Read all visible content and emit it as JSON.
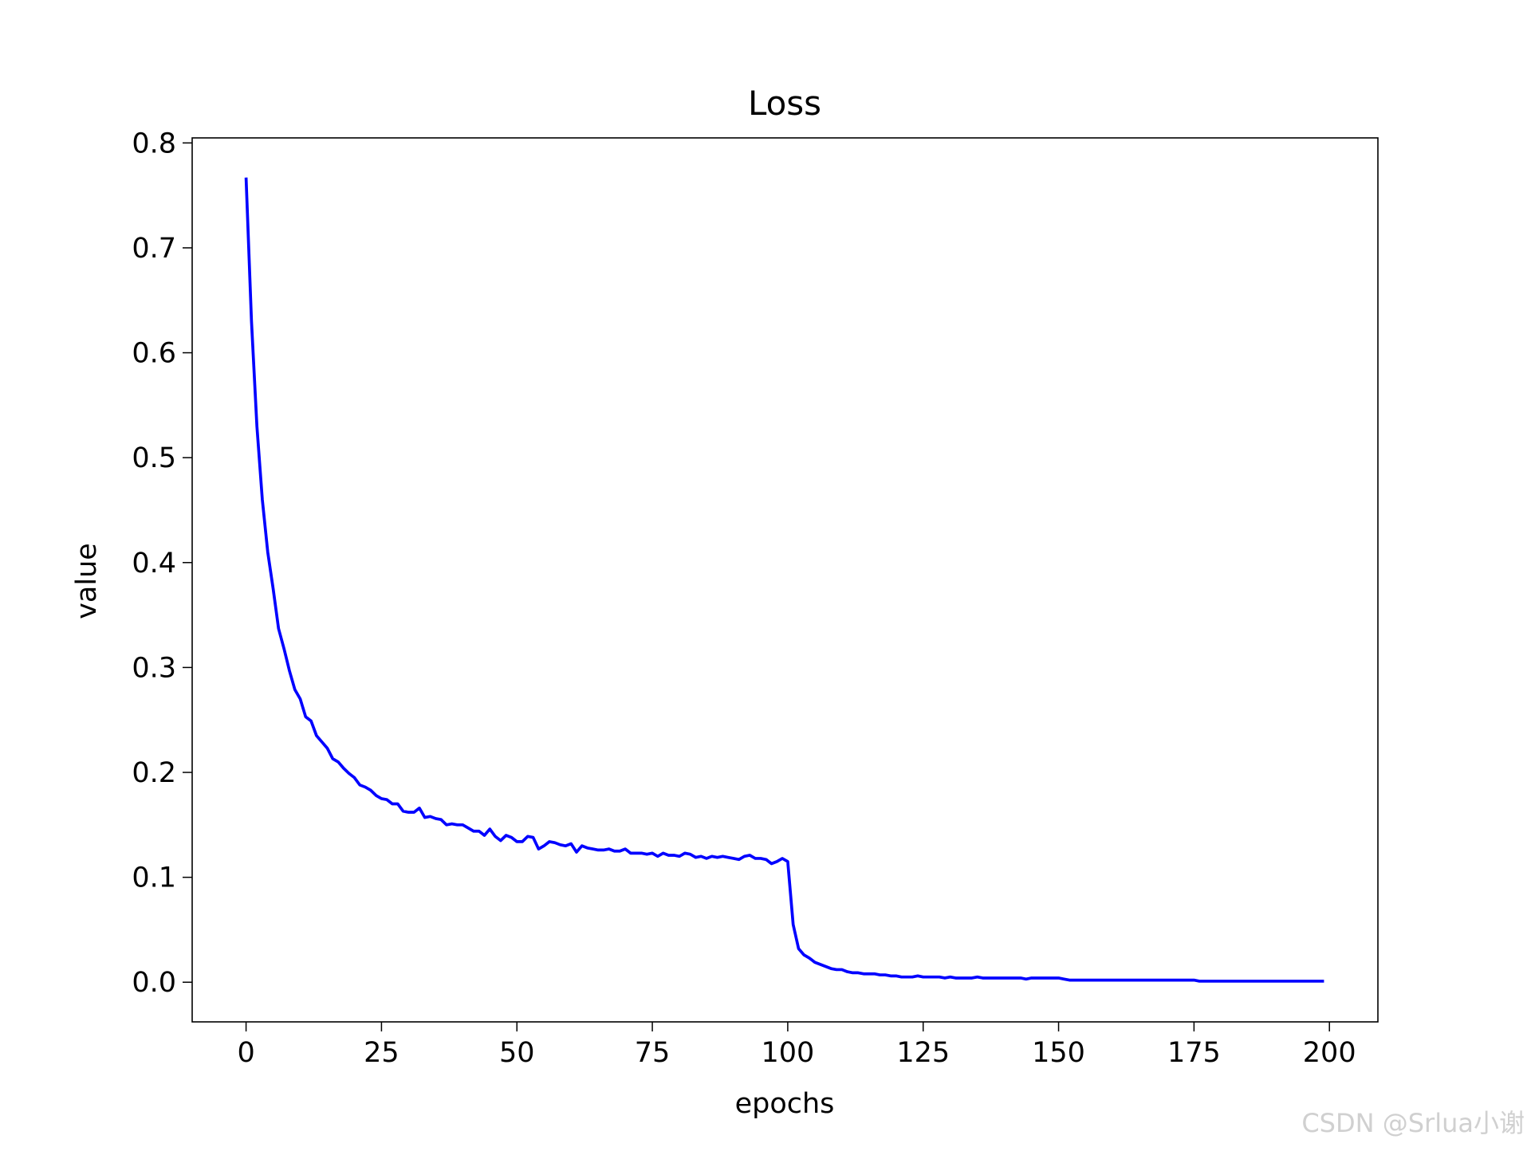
{
  "chart_data": {
    "type": "line",
    "title": "Loss",
    "x_label": "epochs",
    "y_label": "value",
    "watermark": "CSDN @Srlua小谢",
    "color": "#0000ff",
    "x": [
      0,
      1,
      2,
      3,
      4,
      5,
      6,
      7,
      8,
      9,
      10,
      11,
      12,
      13,
      14,
      15,
      16,
      17,
      18,
      19,
      20,
      21,
      22,
      23,
      24,
      25,
      26,
      27,
      28,
      29,
      30,
      31,
      32,
      33,
      34,
      35,
      36,
      37,
      38,
      39,
      40,
      41,
      42,
      43,
      44,
      45,
      46,
      47,
      48,
      49,
      50,
      51,
      52,
      53,
      54,
      55,
      56,
      57,
      58,
      59,
      60,
      61,
      62,
      63,
      64,
      65,
      66,
      67,
      68,
      69,
      70,
      71,
      72,
      73,
      74,
      75,
      76,
      77,
      78,
      79,
      80,
      81,
      82,
      83,
      84,
      85,
      86,
      87,
      88,
      89,
      90,
      91,
      92,
      93,
      94,
      95,
      96,
      97,
      98,
      99,
      100,
      101,
      102,
      103,
      104,
      105,
      106,
      107,
      108,
      109,
      110,
      111,
      112,
      113,
      114,
      115,
      116,
      117,
      118,
      119,
      120,
      121,
      122,
      123,
      124,
      125,
      126,
      127,
      128,
      129,
      130,
      131,
      132,
      133,
      134,
      135,
      136,
      137,
      138,
      139,
      140,
      141,
      142,
      143,
      144,
      145,
      146,
      147,
      148,
      149,
      150,
      151,
      152,
      153,
      154,
      155,
      156,
      157,
      158,
      159,
      160,
      161,
      162,
      163,
      164,
      165,
      166,
      167,
      168,
      169,
      170,
      171,
      172,
      173,
      174,
      175,
      176,
      177,
      178,
      179,
      180,
      181,
      182,
      183,
      184,
      185,
      186,
      187,
      188,
      189,
      190,
      191,
      192,
      193,
      194,
      195,
      196,
      197,
      198,
      199
    ],
    "values": [
      0.767,
      0.63,
      0.53,
      0.46,
      0.41,
      0.375,
      0.337,
      0.318,
      0.297,
      0.279,
      0.27,
      0.253,
      0.249,
      0.235,
      0.229,
      0.223,
      0.213,
      0.21,
      0.204,
      0.199,
      0.195,
      0.188,
      0.186,
      0.183,
      0.178,
      0.175,
      0.174,
      0.17,
      0.17,
      0.163,
      0.162,
      0.162,
      0.166,
      0.157,
      0.158,
      0.156,
      0.155,
      0.15,
      0.151,
      0.15,
      0.15,
      0.147,
      0.144,
      0.144,
      0.14,
      0.146,
      0.139,
      0.135,
      0.14,
      0.138,
      0.134,
      0.134,
      0.139,
      0.138,
      0.127,
      0.13,
      0.134,
      0.133,
      0.131,
      0.13,
      0.132,
      0.124,
      0.13,
      0.128,
      0.127,
      0.126,
      0.126,
      0.127,
      0.125,
      0.125,
      0.127,
      0.123,
      0.123,
      0.123,
      0.122,
      0.123,
      0.12,
      0.123,
      0.121,
      0.121,
      0.12,
      0.123,
      0.122,
      0.119,
      0.12,
      0.118,
      0.12,
      0.119,
      0.12,
      0.119,
      0.118,
      0.117,
      0.12,
      0.121,
      0.118,
      0.118,
      0.117,
      0.113,
      0.115,
      0.118,
      0.115,
      0.055,
      0.032,
      0.026,
      0.023,
      0.019,
      0.017,
      0.015,
      0.013,
      0.012,
      0.012,
      0.01,
      0.009,
      0.009,
      0.008,
      0.008,
      0.008,
      0.007,
      0.007,
      0.006,
      0.006,
      0.005,
      0.005,
      0.005,
      0.006,
      0.005,
      0.005,
      0.005,
      0.005,
      0.004,
      0.005,
      0.004,
      0.004,
      0.004,
      0.004,
      0.005,
      0.004,
      0.004,
      0.004,
      0.004,
      0.004,
      0.004,
      0.004,
      0.004,
      0.003,
      0.004,
      0.004,
      0.004,
      0.004,
      0.004,
      0.004,
      0.003,
      0.002,
      0.002,
      0.002,
      0.002,
      0.002,
      0.002,
      0.002,
      0.002,
      0.002,
      0.002,
      0.002,
      0.002,
      0.002,
      0.002,
      0.002,
      0.002,
      0.002,
      0.002,
      0.002,
      0.002,
      0.002,
      0.002,
      0.002,
      0.002,
      0.001,
      0.001,
      0.001,
      0.001,
      0.001,
      0.001,
      0.001,
      0.001,
      0.001,
      0.001,
      0.001,
      0.001,
      0.001,
      0.001,
      0.001,
      0.001,
      0.001,
      0.001,
      0.001,
      0.001,
      0.001,
      0.001,
      0.001,
      0.001
    ],
    "xlim": [
      -9.95,
      208.95
    ],
    "ylim": [
      -0.0378,
      0.8048
    ],
    "xticks": [
      0,
      25,
      50,
      75,
      100,
      125,
      150,
      175,
      200
    ],
    "yticks": [
      {
        "value": 0,
        "label": "0.0"
      },
      0.1,
      0.2,
      0.3,
      0.4,
      0.5,
      0.6,
      0.7,
      0.8
    ]
  }
}
